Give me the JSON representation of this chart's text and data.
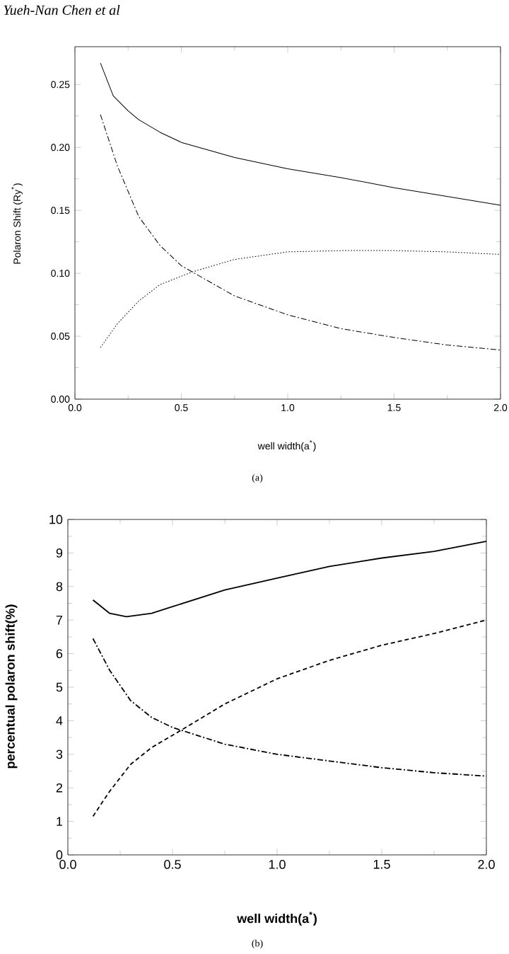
{
  "chart_data": [
    {
      "type": "line",
      "xlabel": "well width(a$^{*}$)",
      "ylabel": "Polaron Shift (Ry$^{*}$)",
      "annotations": [
        "Yueh-Nan Chen et al",
        "(a)"
      ],
      "xlim": [
        0,
        2
      ],
      "ylim": [
        0,
        0.28
      ],
      "xticks": [
        {
          "value": 0,
          "label": "0.0"
        },
        {
          "value": 0.5,
          "label": "0.5"
        },
        {
          "value": 1,
          "label": "1.0"
        },
        {
          "value": 1.5,
          "label": "1.5"
        },
        {
          "value": 2,
          "label": "2.0"
        }
      ],
      "yticks": [
        {
          "value": 0,
          "label": "0.00"
        },
        {
          "value": 0.05,
          "label": "0.05"
        },
        {
          "value": 0.1,
          "label": "0.10"
        },
        {
          "value": 0.15,
          "label": "0.15"
        },
        {
          "value": 0.2,
          "label": "0.20"
        },
        {
          "value": 0.25,
          "label": "0.25"
        }
      ],
      "series": [
        {
          "color": "#000000",
          "line_style": "solid",
          "x": [
            0.12,
            0.18,
            0.25,
            0.3,
            0.4,
            0.5,
            0.75,
            1.0,
            1.25,
            1.5,
            1.75,
            2.0
          ],
          "values": [
            0.267,
            0.241,
            0.229,
            0.222,
            0.212,
            0.204,
            0.192,
            0.183,
            0.176,
            0.168,
            0.161,
            0.154
          ]
        },
        {
          "color": "#000000",
          "line_style": "dashdot",
          "x": [
            0.12,
            0.2,
            0.3,
            0.4,
            0.5,
            0.75,
            1.0,
            1.25,
            1.5,
            1.75,
            2.0
          ],
          "values": [
            0.226,
            0.185,
            0.145,
            0.122,
            0.106,
            0.082,
            0.067,
            0.056,
            0.049,
            0.043,
            0.039
          ]
        },
        {
          "color": "#000000",
          "line_style": "dotted",
          "x": [
            0.12,
            0.2,
            0.3,
            0.4,
            0.55,
            0.75,
            1.0,
            1.25,
            1.5,
            1.75,
            2.0
          ],
          "values": [
            0.041,
            0.06,
            0.078,
            0.091,
            0.101,
            0.111,
            0.117,
            0.118,
            0.118,
            0.117,
            0.115
          ]
        }
      ]
    },
    {
      "type": "line",
      "xlabel": "well width(a$^{*}$)",
      "ylabel": "percentual polaron shift(%)",
      "annotations": [
        "(b)"
      ],
      "xlim": [
        0,
        2
      ],
      "ylim": [
        0,
        10
      ],
      "xticks": [
        {
          "value": 0,
          "label": "0.0"
        },
        {
          "value": 0.5,
          "label": "0.5"
        },
        {
          "value": 1,
          "label": "1.0"
        },
        {
          "value": 1.5,
          "label": "1.5"
        },
        {
          "value": 2,
          "label": "2.0"
        }
      ],
      "yticks": [
        0,
        1,
        2,
        3,
        4,
        5,
        6,
        7,
        8,
        9,
        10
      ],
      "series": [
        {
          "color": "#000000",
          "line_style": "solid",
          "x": [
            0.12,
            0.2,
            0.28,
            0.4,
            0.5,
            0.75,
            1.0,
            1.25,
            1.5,
            1.75,
            2.0
          ],
          "values": [
            7.6,
            7.2,
            7.1,
            7.2,
            7.4,
            7.9,
            8.25,
            8.6,
            8.85,
            9.05,
            9.35
          ]
        },
        {
          "color": "#000000",
          "line_style": "dashdot",
          "x": [
            0.12,
            0.2,
            0.3,
            0.4,
            0.5,
            0.75,
            1.0,
            1.25,
            1.5,
            1.75,
            2.0
          ],
          "values": [
            6.45,
            5.5,
            4.6,
            4.1,
            3.8,
            3.3,
            3.0,
            2.8,
            2.6,
            2.45,
            2.35
          ]
        },
        {
          "color": "#000000",
          "line_style": "dashed",
          "x": [
            0.12,
            0.2,
            0.3,
            0.4,
            0.55,
            0.75,
            1.0,
            1.25,
            1.5,
            1.75,
            2.0
          ],
          "values": [
            1.15,
            1.9,
            2.7,
            3.2,
            3.75,
            4.5,
            5.25,
            5.8,
            6.25,
            6.6,
            7.0
          ]
        }
      ]
    }
  ]
}
